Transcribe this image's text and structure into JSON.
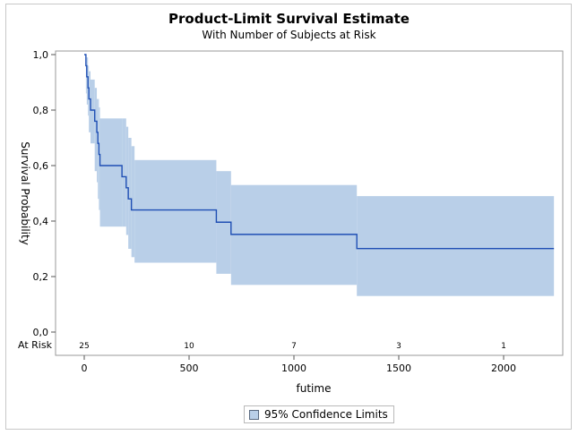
{
  "chart_data": {
    "type": "line",
    "title": "Product-Limit Survival Estimate",
    "subtitle": "With Number of Subjects at Risk",
    "xlabel": "futime",
    "ylabel": "Survival Probability",
    "xlim": [
      -80,
      2260
    ],
    "ylim": [
      0,
      1.0
    ],
    "xticks": [
      0,
      500,
      1000,
      1500,
      2000
    ],
    "xtick_labels": [
      "0",
      "500",
      "1000",
      "1500",
      "2000"
    ],
    "yticks": [
      0,
      0.2,
      0.4,
      0.6,
      0.8,
      1.0
    ],
    "ytick_labels": [
      "0,0",
      "0,2",
      "0,4",
      "0,6",
      "0,8",
      "1,0"
    ],
    "grid": false,
    "series": [
      {
        "name": "",
        "steps": [
          [
            0,
            1.0
          ],
          [
            8,
            0.96
          ],
          [
            12,
            0.92
          ],
          [
            18,
            0.88
          ],
          [
            22,
            0.84
          ],
          [
            30,
            0.8
          ],
          [
            50,
            0.76
          ],
          [
            60,
            0.72
          ],
          [
            65,
            0.68
          ],
          [
            70,
            0.64
          ],
          [
            75,
            0.6
          ],
          [
            180,
            0.56
          ],
          [
            200,
            0.52
          ],
          [
            210,
            0.48
          ],
          [
            225,
            0.44
          ],
          [
            630,
            0.396
          ],
          [
            700,
            0.352
          ],
          [
            1300,
            0.301
          ],
          [
            2240,
            0.301
          ]
        ],
        "color": "#1f4fb4"
      }
    ],
    "confidence_band": {
      "name": "95% Confidence Limits",
      "color": "#b9cfe8",
      "steps": [
        [
          0,
          1.0,
          1.0
        ],
        [
          8,
          0.99,
          0.86
        ],
        [
          12,
          0.99,
          0.82
        ],
        [
          18,
          0.96,
          0.78
        ],
        [
          22,
          0.94,
          0.72
        ],
        [
          30,
          0.91,
          0.68
        ],
        [
          50,
          0.88,
          0.58
        ],
        [
          60,
          0.84,
          0.54
        ],
        [
          65,
          0.84,
          0.48
        ],
        [
          70,
          0.81,
          0.44
        ],
        [
          75,
          0.77,
          0.38
        ],
        [
          180,
          0.77,
          0.38
        ],
        [
          200,
          0.74,
          0.35
        ],
        [
          210,
          0.7,
          0.3
        ],
        [
          225,
          0.67,
          0.27
        ],
        [
          240,
          0.62,
          0.25
        ],
        [
          630,
          0.58,
          0.21
        ],
        [
          700,
          0.53,
          0.17
        ],
        [
          1300,
          0.49,
          0.13
        ],
        [
          2240,
          0.49,
          0.13
        ]
      ]
    },
    "at_risk": {
      "label": "At Risk",
      "points": [
        {
          "x": 0,
          "n": "25"
        },
        {
          "x": 500,
          "n": "10"
        },
        {
          "x": 1000,
          "n": "7"
        },
        {
          "x": 1500,
          "n": "3"
        },
        {
          "x": 2000,
          "n": "1"
        }
      ]
    },
    "legend": {
      "position": "bottom",
      "entries": [
        "95% Confidence Limits"
      ]
    }
  }
}
